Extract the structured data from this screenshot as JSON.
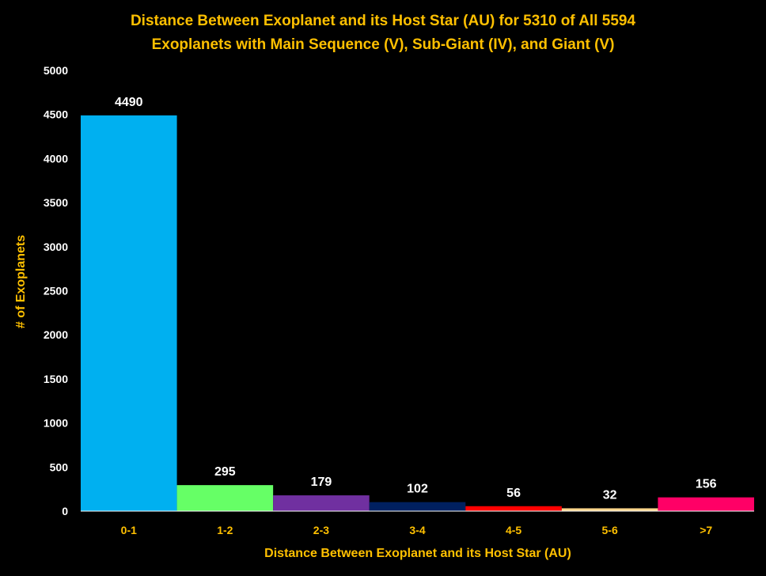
{
  "chart_data": {
    "type": "bar",
    "title_lines": [
      "Distance Between Exoplanet and its Host Star (AU) for 5310 of All 5594",
      "Exoplanets with Main Sequence (V), Sub-Giant (IV), and Giant (V)"
    ],
    "xlabel": "Distance  Between Exoplanet  and its Host Star  (AU)",
    "ylabel": "# of Exoplanets",
    "categories": [
      "0-1",
      "1-2",
      "2-3",
      "3-4",
      "4-5",
      "5-6",
      ">7"
    ],
    "values": [
      4490,
      295,
      179,
      102,
      56,
      32,
      156
    ],
    "data_labels": [
      "4490",
      "295",
      "179",
      "102",
      "56",
      "32",
      "156"
    ],
    "bar_colors": [
      "#00b0f0",
      "#66ff66",
      "#7030a0",
      "#002060",
      "#ff0000",
      "#ffd78c",
      "#ff0066"
    ],
    "ylim": [
      0,
      5000
    ],
    "yticks": [
      "0",
      "500",
      "1000",
      "1500",
      "2000",
      "2500",
      "3000",
      "3500",
      "4000",
      "4500",
      "5000"
    ],
    "grid": false,
    "legend": "none",
    "colors": {
      "background": "#000000",
      "title": "#ffc000",
      "axis_text": "#ffc000",
      "tick_y": "#ffffff",
      "tick_x": "#ffc000",
      "data_label": "#ffffff",
      "axis_line": "#ffffff"
    }
  }
}
